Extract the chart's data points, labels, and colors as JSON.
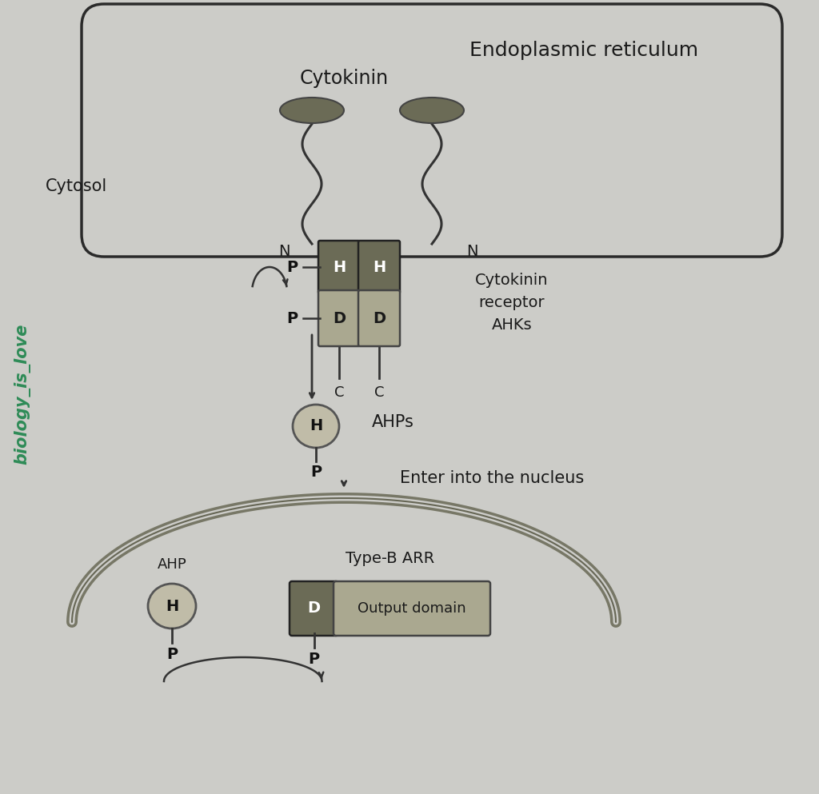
{
  "bg_color": "#ccccc8",
  "er_label": "Endoplasmic reticulum",
  "cytosol_label": "Cytosol",
  "cytokinin_label": "Cytokinin",
  "receptor_label": "Cytokinin\nreceptor\nAHKs",
  "ahps_label": "AHPs",
  "enter_nucleus_label": "Enter into the nucleus",
  "ahp_label": "AHP",
  "type_b_arr_label": "Type-B ARR",
  "output_domain_label": "Output domain",
  "watermark": "biology_is_love",
  "watermark_color": "#2e8b57",
  "dark_box_color": "#6b6b56",
  "light_box_color": "#aaa890",
  "circle_color": "#c0bca8",
  "er_border_color": "#2a2a2a",
  "line_color": "#333333"
}
